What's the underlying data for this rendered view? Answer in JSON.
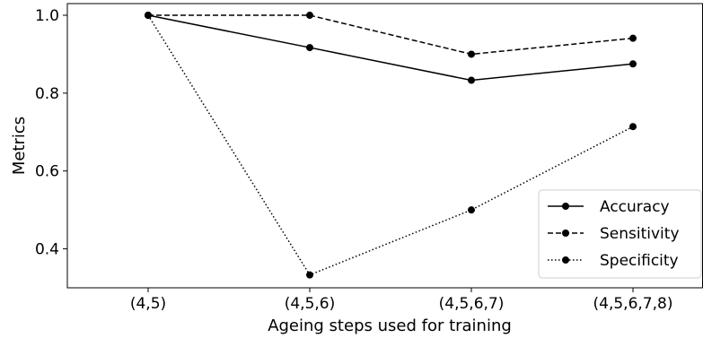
{
  "chart_data": {
    "type": "line",
    "title": "",
    "xlabel": "Ageing steps used for training",
    "ylabel": "Metrics",
    "categories": [
      "(4,5)",
      "(4,5,6)",
      "(4,5,6,7)",
      "(4,5,6,7,8)"
    ],
    "ylim": [
      0.3,
      1.03
    ],
    "yticks": [
      0.4,
      0.6,
      0.8,
      1.0
    ],
    "ytick_labels": [
      "0.4",
      "0.6",
      "0.8",
      "1.0"
    ],
    "grid": false,
    "legend_position": "lower-right",
    "series": [
      {
        "name": "Accuracy",
        "linestyle": "solid",
        "color": "#000000",
        "values": [
          1.0,
          0.917,
          0.833,
          0.875
        ]
      },
      {
        "name": "Sensitivity",
        "linestyle": "dashed",
        "color": "#000000",
        "values": [
          1.0,
          1.0,
          0.9,
          0.941
        ]
      },
      {
        "name": "Specificity",
        "linestyle": "dotted",
        "color": "#000000",
        "values": [
          1.0,
          0.333,
          0.5,
          0.714
        ]
      }
    ]
  }
}
